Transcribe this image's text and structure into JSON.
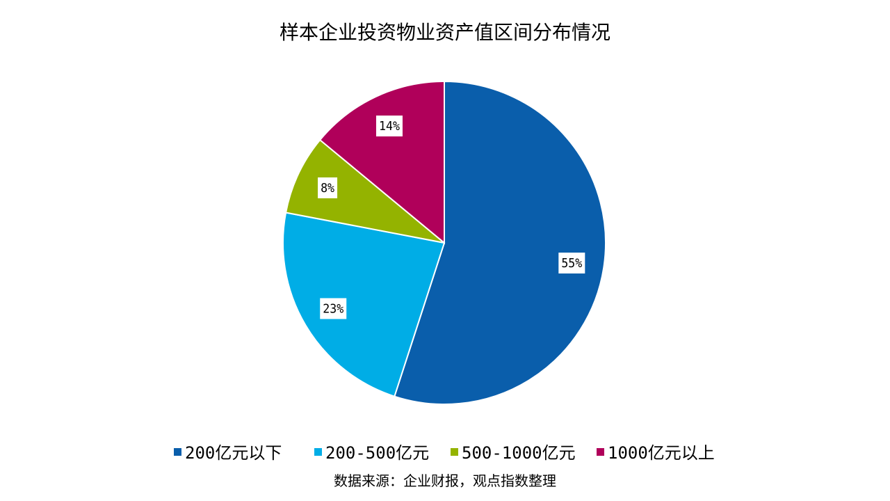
{
  "chart_data": {
    "type": "pie",
    "title": "样本企业投资物业资产值区间分布情况",
    "categories": [
      "200亿元以下",
      "200-500亿元",
      "500-1000亿元",
      "1000亿元以上"
    ],
    "values": [
      55,
      23,
      8,
      14
    ],
    "data_labels": [
      "55%",
      "23%",
      "8%",
      "14%"
    ],
    "colors": [
      "#0a5eab",
      "#00ade6",
      "#94b300",
      "#b0005a"
    ],
    "legend_position": "bottom",
    "start_angle_deg": 0,
    "direction": "clockwise"
  },
  "source_note": "数据来源：企业财报，观点指数整理"
}
